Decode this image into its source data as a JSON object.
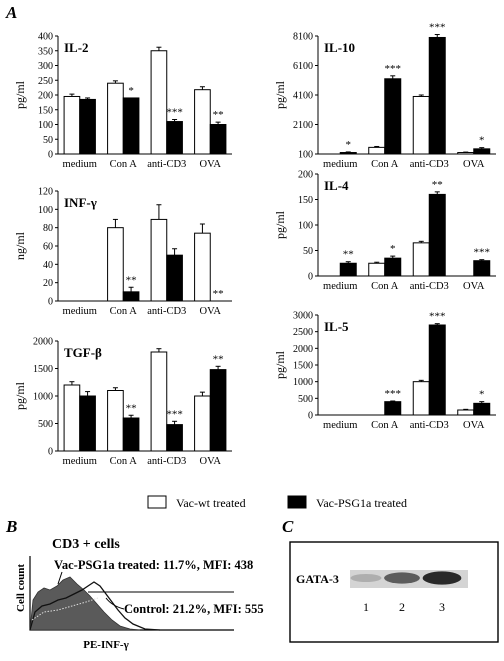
{
  "panel_labels": {
    "a": "A",
    "b": "B",
    "c": "C"
  },
  "legend": {
    "open_label": "Vac-wt treated",
    "filled_label": "Vac-PSG1a treated"
  },
  "chart_data": [
    {
      "type": "bar",
      "title": "IL-2",
      "ylabel": "pg/ml",
      "categories": [
        "medium",
        "Con A",
        "anti-CD3",
        "OVA"
      ],
      "ylim": [
        0,
        400
      ],
      "yticks": [
        "0",
        "50",
        "100",
        "150",
        "200",
        "250",
        "300",
        "350",
        "400"
      ],
      "series": [
        {
          "name": "Vac-wt treated",
          "values": [
            195,
            240,
            350,
            218
          ]
        },
        {
          "name": "Vac-PSG1a treated",
          "values": [
            185,
            190,
            110,
            100
          ]
        }
      ],
      "errors": [
        [
          8,
          8,
          12,
          10
        ],
        [
          5,
          0,
          7,
          8
        ]
      ],
      "annotations": [
        "",
        "*",
        "***",
        "**"
      ]
    },
    {
      "type": "bar",
      "title": "IL-10",
      "ylabel": "pg/ml",
      "categories": [
        "medium",
        "Con A",
        "anti-CD3",
        "OVA"
      ],
      "ylim": [
        100,
        8100
      ],
      "yticks": [
        "100",
        "2100",
        "4100",
        "6100",
        "8100"
      ],
      "series": [
        {
          "name": "Vac-wt treated",
          "values": [
            100,
            550,
            4000,
            200
          ]
        },
        {
          "name": "Vac-PSG1a treated",
          "values": [
            200,
            5200,
            8000,
            450
          ]
        }
      ],
      "errors": [
        [
          0,
          60,
          100,
          30
        ],
        [
          40,
          200,
          200,
          80
        ]
      ],
      "annotations": [
        "*",
        "***",
        "***",
        "*"
      ]
    },
    {
      "type": "bar",
      "title": "INF-γ",
      "ylabel": "ng/ml",
      "categories": [
        "medium",
        "Con A",
        "anti-CD3",
        "OVA"
      ],
      "ylim": [
        0,
        120
      ],
      "yticks": [
        "0",
        "20",
        "40",
        "60",
        "80",
        "100",
        "120"
      ],
      "series": [
        {
          "name": "Vac-wt treated",
          "values": [
            0,
            80,
            89,
            74
          ]
        },
        {
          "name": "Vac-PSG1a treated",
          "values": [
            0,
            10,
            50,
            0
          ]
        }
      ],
      "errors": [
        [
          0,
          9,
          16,
          10
        ],
        [
          0,
          5,
          7,
          0
        ]
      ],
      "annotations": [
        "",
        "**",
        "",
        "**"
      ]
    },
    {
      "type": "bar",
      "title": "IL-4",
      "ylabel": "pg/ml",
      "categories": [
        "medium",
        "Con A",
        "anti-CD3",
        "OVA"
      ],
      "ylim": [
        0,
        200
      ],
      "yticks": [
        "0",
        "50",
        "100",
        "150",
        "200"
      ],
      "series": [
        {
          "name": "Vac-wt treated",
          "values": [
            0,
            25,
            65,
            0
          ]
        },
        {
          "name": "Vac-PSG1a treated",
          "values": [
            25,
            35,
            160,
            30
          ]
        }
      ],
      "errors": [
        [
          0,
          2,
          3,
          0
        ],
        [
          3,
          4,
          5,
          2
        ]
      ],
      "annotations": [
        "**",
        "*",
        "**",
        "***"
      ]
    },
    {
      "type": "bar",
      "title": "TGF-β",
      "ylabel": "pg/ml",
      "categories": [
        "medium",
        "Con A",
        "anti-CD3",
        "OVA"
      ],
      "ylim": [
        0,
        2000
      ],
      "yticks": [
        "0",
        "500",
        "1000",
        "1500",
        "2000"
      ],
      "series": [
        {
          "name": "Vac-wt treated",
          "values": [
            1200,
            1100,
            1800,
            1000
          ]
        },
        {
          "name": "Vac-PSG1a treated",
          "values": [
            1000,
            600,
            480,
            1480
          ]
        }
      ],
      "errors": [
        [
          60,
          50,
          60,
          70
        ],
        [
          80,
          50,
          60,
          60
        ]
      ],
      "annotations": [
        "",
        "**",
        "***",
        "**"
      ]
    },
    {
      "type": "bar",
      "title": "IL-5",
      "ylabel": "pg/ml",
      "categories": [
        "medium",
        "Con A",
        "anti-CD3",
        "OVA"
      ],
      "ylim": [
        0,
        3000
      ],
      "yticks": [
        "0",
        "500",
        "1000",
        "1500",
        "2000",
        "2500",
        "3000"
      ],
      "series": [
        {
          "name": "Vac-wt treated",
          "values": [
            0,
            0,
            1000,
            150
          ]
        },
        {
          "name": "Vac-PSG1a treated",
          "values": [
            0,
            400,
            2700,
            350
          ]
        }
      ],
      "errors": [
        [
          0,
          0,
          40,
          20
        ],
        [
          0,
          20,
          40,
          50
        ]
      ],
      "annotations": [
        "",
        "***",
        "***",
        "*"
      ]
    }
  ],
  "flow": {
    "title": "CD3 + cells",
    "ylabel": "Cell count",
    "xlabel": "PE-INF-γ",
    "psg_label": "Vac-PSG1a treated: 11.7%, MFI: 438",
    "control_label": "Control: 21.2%, MFI: 555"
  },
  "blot": {
    "label": "GATA-3",
    "lanes": [
      "1",
      "2",
      "3"
    ],
    "band_intensity": [
      0.25,
      0.65,
      0.9
    ]
  }
}
